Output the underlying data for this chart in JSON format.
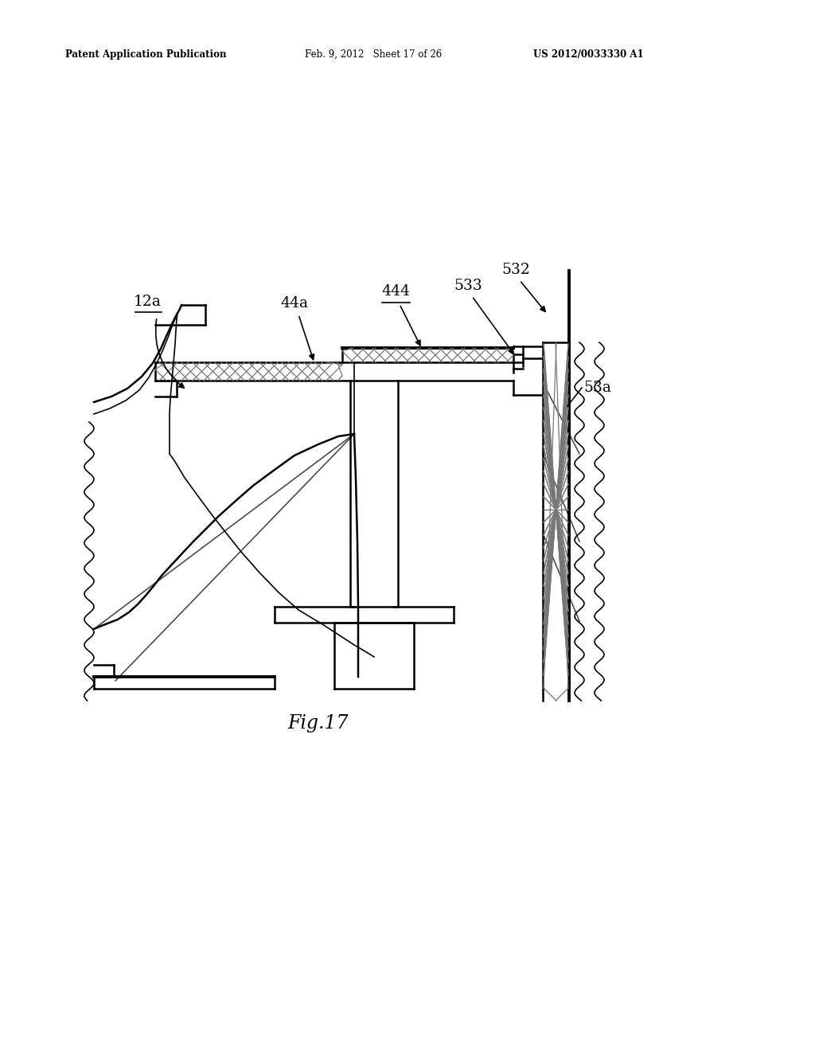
{
  "bg_color": "#ffffff",
  "line_color": "#000000",
  "header_left": "Patent Application Publication",
  "header_center": "Feb. 9, 2012   Sheet 17 of 26",
  "header_right": "US 2012/0033330 A1",
  "fig_label": "Fig.17"
}
